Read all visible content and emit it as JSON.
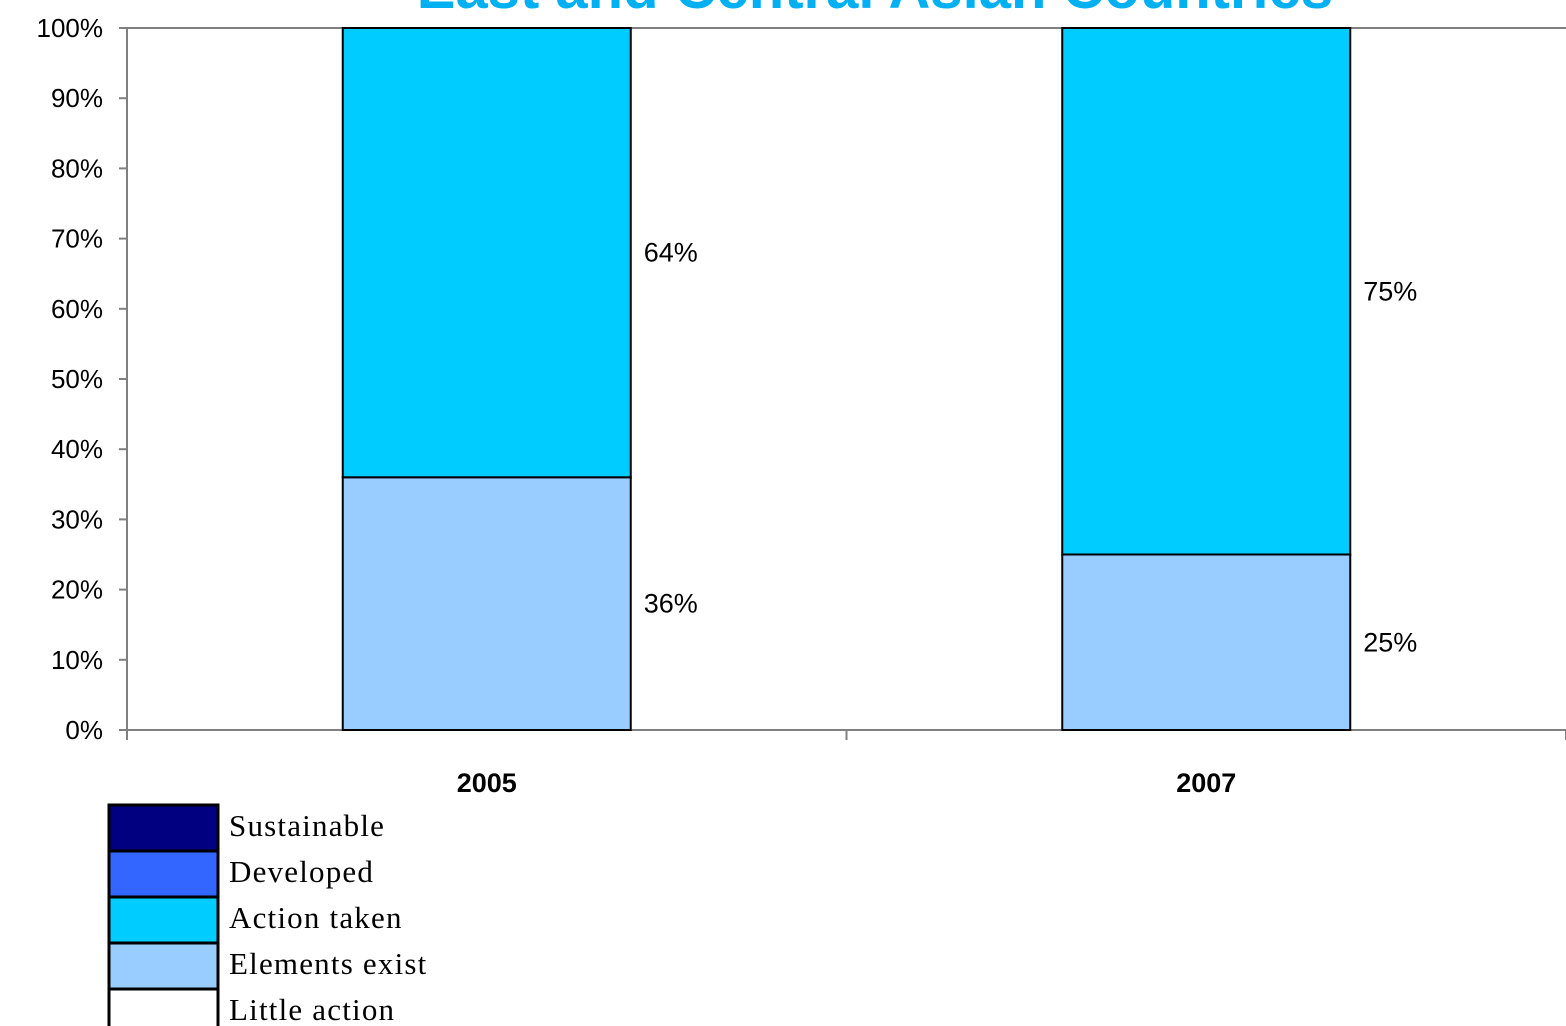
{
  "chart_data": {
    "type": "bar",
    "stacked": true,
    "title": "East and Central Asian Countries",
    "xlabel": "",
    "ylabel": "",
    "ylim": [
      0,
      100
    ],
    "y_ticks": [
      "0%",
      "10%",
      "20%",
      "30%",
      "40%",
      "50%",
      "60%",
      "70%",
      "80%",
      "90%",
      "100%"
    ],
    "categories": [
      "2005",
      "2007"
    ],
    "series": [
      {
        "name": "Elements exist",
        "color": "#99ccff",
        "values": [
          36,
          25
        ],
        "labels": [
          "36%",
          "25%"
        ]
      },
      {
        "name": "Action taken",
        "color": "#00ccff",
        "values": [
          64,
          75
        ],
        "labels": [
          "64%",
          "75%"
        ]
      }
    ],
    "legend": {
      "placement": "bottom-left",
      "items": [
        {
          "name": "Sustainable",
          "color": "#000080"
        },
        {
          "name": "Developed",
          "color": "#3366ff"
        },
        {
          "name": "Action taken",
          "color": "#00ccff"
        },
        {
          "name": "Elements exist",
          "color": "#99ccff"
        },
        {
          "name": "Little action",
          "color": "#ffffff"
        }
      ]
    },
    "grid": false
  }
}
